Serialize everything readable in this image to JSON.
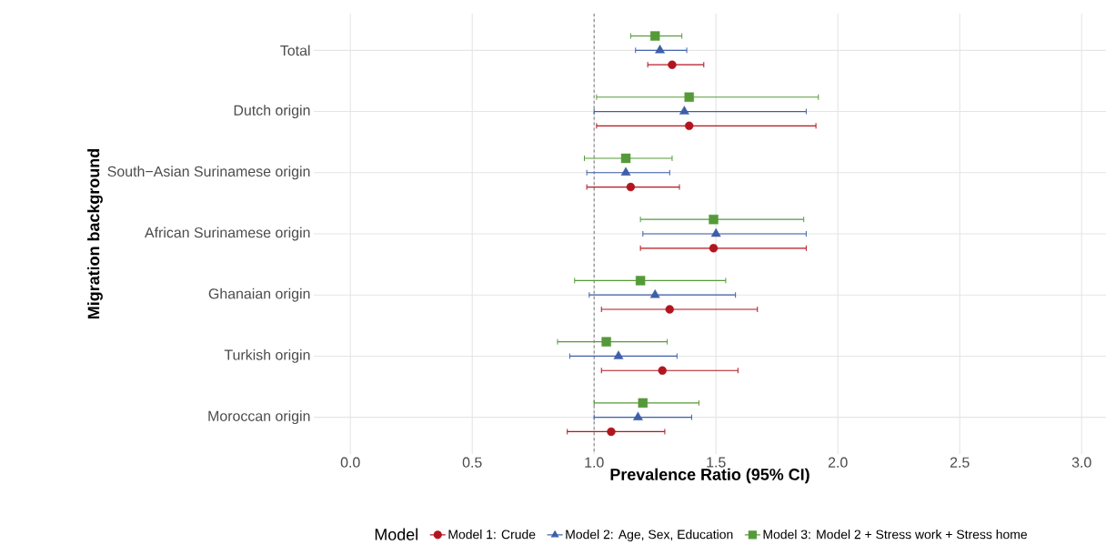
{
  "chart_data": {
    "type": "scatter",
    "orientation": "horizontal",
    "xlabel": "Prevalence Ratio (95% CI)",
    "ylabel": "Migration background",
    "legend_title": "Model",
    "legend": "bottom",
    "grid": true,
    "categories": [
      "Total",
      "Dutch origin",
      "South−Asian Surinamese origin",
      "African Surinamese origin",
      "Ghanaian origin",
      "Turkish origin",
      "Moroccan origin"
    ],
    "xlim": [
      -0.15,
      3.1
    ],
    "xticks": [
      {
        "value": 0,
        "label": "0.0"
      },
      {
        "value": 0.5,
        "label": "0.5"
      },
      {
        "value": 1,
        "label": "1.0"
      },
      {
        "value": 1.5,
        "label": "1.5"
      },
      {
        "value": 2,
        "label": "2.0"
      },
      {
        "value": 2.5,
        "label": "2.5"
      },
      {
        "value": 3,
        "label": "3.0"
      }
    ],
    "ref_lines": [
      {
        "axis": "x",
        "value": 1,
        "color": "#808080",
        "line_style": "dashed"
      }
    ],
    "series": [
      {
        "name": "Model 1: Crude",
        "color": "#b2151f",
        "marker": "circle",
        "values": [
          1.32,
          1.39,
          1.15,
          1.49,
          1.31,
          1.28,
          1.07
        ],
        "errors": [
          [
            1.22,
            1.45
          ],
          [
            1.01,
            1.91
          ],
          [
            0.97,
            1.35
          ],
          [
            1.19,
            1.87
          ],
          [
            1.03,
            1.67
          ],
          [
            1.03,
            1.59
          ],
          [
            0.89,
            1.29
          ]
        ]
      },
      {
        "name": "Model 2: Age, Sex, Education",
        "color": "#3e5fa8",
        "marker": "triangle",
        "values": [
          1.27,
          1.37,
          1.13,
          1.5,
          1.25,
          1.1,
          1.18
        ],
        "errors": [
          [
            1.17,
            1.38
          ],
          [
            1.0,
            1.87
          ],
          [
            0.97,
            1.31
          ],
          [
            1.2,
            1.87
          ],
          [
            0.98,
            1.58
          ],
          [
            0.9,
            1.34
          ],
          [
            1.0,
            1.4
          ]
        ]
      },
      {
        "name": "Model 3: Model 2 + Stress work + Stress home",
        "color": "#559a3a",
        "marker": "square",
        "values": [
          1.25,
          1.39,
          1.13,
          1.49,
          1.19,
          1.05,
          1.2
        ],
        "errors": [
          [
            1.15,
            1.36
          ],
          [
            1.01,
            1.92
          ],
          [
            0.96,
            1.32
          ],
          [
            1.19,
            1.86
          ],
          [
            0.92,
            1.54
          ],
          [
            0.85,
            1.3
          ],
          [
            1.0,
            1.43
          ]
        ]
      }
    ]
  }
}
